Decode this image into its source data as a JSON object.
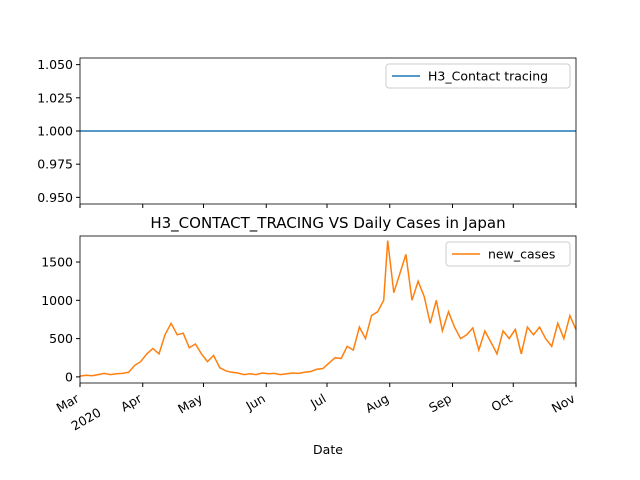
{
  "chart_data": [
    {
      "type": "line",
      "x": [
        "2020-03-01",
        "2020-11-01"
      ],
      "series": [
        {
          "name": "H3_Contact tracing",
          "color": "#1f77b4",
          "values": [
            1,
            1
          ]
        }
      ],
      "xlim": [
        "2020-03-01",
        "2020-11-01"
      ],
      "xticks": [
        "2020-03-01",
        "2020-04-01",
        "2020-05-01",
        "2020-06-01",
        "2020-07-01",
        "2020-08-01",
        "2020-09-01",
        "2020-10-01",
        "2020-11-01"
      ],
      "ylim": [
        0.945,
        1.055
      ],
      "yticks": [
        {
          "value": 0.95,
          "label": "0.950"
        },
        {
          "value": 0.975,
          "label": "0.975"
        },
        {
          "value": 1.0,
          "label": "1.000"
        },
        {
          "value": 1.025,
          "label": "1.025"
        },
        {
          "value": 1.05,
          "label": "1.050"
        }
      ],
      "legend": "upper right"
    },
    {
      "type": "line",
      "title": "H3_CONTACT_TRACING VS Daily Cases in Japan",
      "x_label": "Date",
      "year_label": "2020",
      "x": [
        "2020-03-01",
        "2020-03-04",
        "2020-03-07",
        "2020-03-10",
        "2020-03-13",
        "2020-03-16",
        "2020-03-19",
        "2020-03-22",
        "2020-03-25",
        "2020-03-28",
        "2020-03-31",
        "2020-04-03",
        "2020-04-06",
        "2020-04-09",
        "2020-04-12",
        "2020-04-15",
        "2020-04-18",
        "2020-04-21",
        "2020-04-24",
        "2020-04-27",
        "2020-04-30",
        "2020-05-03",
        "2020-05-06",
        "2020-05-09",
        "2020-05-12",
        "2020-05-15",
        "2020-05-18",
        "2020-05-21",
        "2020-05-24",
        "2020-05-27",
        "2020-05-30",
        "2020-06-02",
        "2020-06-05",
        "2020-06-08",
        "2020-06-11",
        "2020-06-14",
        "2020-06-17",
        "2020-06-20",
        "2020-06-23",
        "2020-06-26",
        "2020-06-29",
        "2020-07-02",
        "2020-07-05",
        "2020-07-08",
        "2020-07-11",
        "2020-07-14",
        "2020-07-17",
        "2020-07-20",
        "2020-07-23",
        "2020-07-26",
        "2020-07-29",
        "2020-07-31",
        "2020-08-03",
        "2020-08-06",
        "2020-08-09",
        "2020-08-12",
        "2020-08-15",
        "2020-08-18",
        "2020-08-21",
        "2020-08-24",
        "2020-08-27",
        "2020-08-30",
        "2020-09-02",
        "2020-09-05",
        "2020-09-08",
        "2020-09-11",
        "2020-09-14",
        "2020-09-17",
        "2020-09-20",
        "2020-09-23",
        "2020-09-26",
        "2020-09-29",
        "2020-10-02",
        "2020-10-05",
        "2020-10-08",
        "2020-10-11",
        "2020-10-14",
        "2020-10-17",
        "2020-10-20",
        "2020-10-23",
        "2020-10-26",
        "2020-10-29",
        "2020-11-01"
      ],
      "series": [
        {
          "name": "new_cases",
          "color": "#ff7f0e",
          "values": [
            10,
            20,
            15,
            30,
            45,
            30,
            40,
            45,
            60,
            150,
            200,
            300,
            370,
            300,
            550,
            700,
            550,
            570,
            380,
            430,
            300,
            200,
            280,
            120,
            80,
            60,
            50,
            30,
            40,
            30,
            50,
            40,
            45,
            30,
            40,
            50,
            45,
            60,
            70,
            100,
            110,
            180,
            250,
            240,
            400,
            350,
            650,
            500,
            800,
            850,
            1000,
            1780,
            1100,
            1350,
            1600,
            1000,
            1250,
            1050,
            700,
            1000,
            600,
            850,
            650,
            500,
            550,
            640,
            350,
            600,
            450,
            300,
            600,
            500,
            620,
            300,
            650,
            550,
            650,
            500,
            400,
            700,
            500,
            800,
            620
          ]
        }
      ],
      "xlim": [
        "2020-03-01",
        "2020-11-01"
      ],
      "xticks": [
        {
          "value": "2020-03-01",
          "label": "Mar"
        },
        {
          "value": "2020-04-01",
          "label": "Apr"
        },
        {
          "value": "2020-05-01",
          "label": "May"
        },
        {
          "value": "2020-06-01",
          "label": "Jun"
        },
        {
          "value": "2020-07-01",
          "label": "Jul"
        },
        {
          "value": "2020-08-01",
          "label": "Aug"
        },
        {
          "value": "2020-09-01",
          "label": "Sep"
        },
        {
          "value": "2020-10-01",
          "label": "Oct"
        },
        {
          "value": "2020-11-01",
          "label": "Nov"
        }
      ],
      "ylim": [
        -80,
        1840
      ],
      "yticks": [
        0,
        500,
        1000,
        1500
      ],
      "legend": "upper right"
    }
  ]
}
